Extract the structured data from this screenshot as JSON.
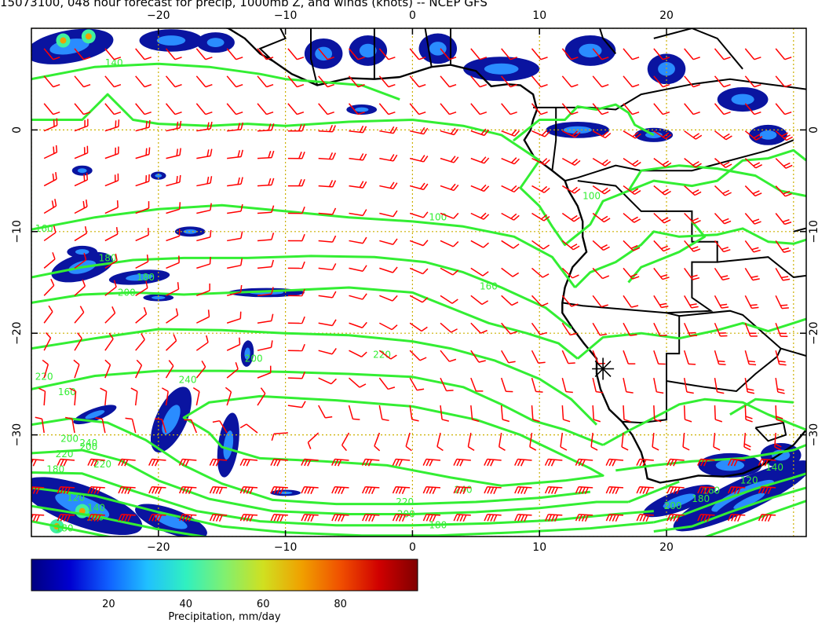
{
  "title": "15073100, 048 hour forecast for precip, 1000mb Z, and winds (knots) -- NCEP GFS",
  "map": {
    "lon_range": [
      -30,
      31
    ],
    "lat_range": [
      -40,
      10
    ],
    "lon_ticks": [
      -20,
      -10,
      0,
      10,
      20
    ],
    "lat_ticks": [
      0,
      -10,
      -20,
      -30
    ],
    "lon_tick_labels": [
      "−20",
      "−10",
      "0",
      "10",
      "20"
    ],
    "lat_tick_labels": [
      "0",
      "−10",
      "−20",
      "−30"
    ],
    "grid": true,
    "grid_color": "#ccb000",
    "coastline_color": "#000000",
    "contour_color": "#33ee33",
    "barb_color": "#ff0000",
    "marker": {
      "symbol": "star",
      "lon": 15,
      "lat": -23.5
    }
  },
  "contour_labels": [
    "140",
    "160",
    "180",
    "200",
    "220",
    "240",
    "240",
    "220",
    "200",
    "180",
    "160",
    "180",
    "200",
    "220",
    "240",
    "220",
    "200",
    "180",
    "160",
    "140",
    "120",
    "100",
    "180",
    "200",
    "220",
    "120",
    "140",
    "160",
    "180",
    "200",
    "160",
    "100"
  ],
  "colorbar": {
    "label": "Precipitation, mm/day",
    "ticks": [
      "20",
      "40",
      "60",
      "80"
    ],
    "range": [
      0,
      100
    ],
    "colors": [
      "#000080",
      "#0000d0",
      "#1060ff",
      "#20c0ff",
      "#30f0c0",
      "#80f070",
      "#d0e020",
      "#f0a000",
      "#f05000",
      "#d00000",
      "#800000"
    ]
  }
}
